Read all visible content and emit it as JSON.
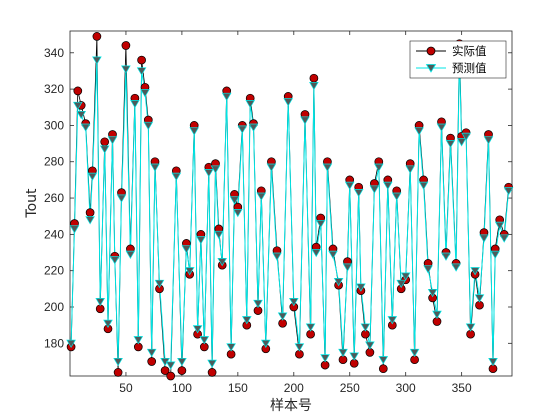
{
  "chart_data": {
    "type": "line",
    "xlabel": "样本号",
    "ylabel": "Tout",
    "xlim": [
      0,
      395
    ],
    "ylim": [
      162,
      352
    ],
    "x_ticks": [
      50,
      100,
      150,
      200,
      250,
      300,
      350
    ],
    "y_ticks": [
      180,
      200,
      220,
      240,
      260,
      280,
      300,
      320,
      340
    ],
    "grid": false,
    "legend_position": "top-right",
    "series": [
      {
        "name": "实际值",
        "color": "#000000",
        "marker_fill": "#c00000",
        "marker": "circle",
        "x": [
          1,
          4,
          7,
          10,
          14,
          18,
          20,
          24,
          27,
          31,
          34,
          38,
          40,
          43,
          46,
          50,
          54,
          58,
          61,
          64,
          67,
          70,
          73,
          76,
          80,
          85,
          90,
          95,
          100,
          104,
          107,
          111,
          114,
          117,
          120,
          124,
          127,
          130,
          133,
          136,
          140,
          144,
          147,
          150,
          154,
          158,
          161,
          164,
          168,
          171,
          175,
          180,
          185,
          190,
          195,
          200,
          205,
          210,
          215,
          218,
          220,
          224,
          228,
          230,
          235,
          240,
          244,
          248,
          250,
          254,
          258,
          260,
          264,
          268,
          272,
          276,
          280,
          284,
          288,
          292,
          296,
          300,
          304,
          308,
          312,
          316,
          320,
          324,
          328,
          332,
          336,
          340,
          345,
          348,
          350,
          354,
          358,
          362,
          366,
          370,
          374,
          378,
          380,
          384,
          388,
          392
        ],
        "values": [
          178,
          246,
          319,
          311,
          301,
          252,
          275,
          349,
          199,
          291,
          188,
          295,
          228,
          164,
          263,
          344,
          232,
          315,
          178,
          336,
          321,
          303,
          170,
          280,
          210,
          165,
          162,
          275,
          165,
          235,
          218,
          300,
          185,
          240,
          178,
          277,
          164,
          279,
          243,
          223,
          319,
          174,
          262,
          255,
          300,
          190,
          315,
          301,
          198,
          264,
          177,
          280,
          231,
          191,
          316,
          200,
          174,
          306,
          185,
          326,
          233,
          249,
          168,
          280,
          232,
          212,
          171,
          225,
          270,
          169,
          266,
          209,
          185,
          175,
          268,
          280,
          166,
          270,
          190,
          264,
          210,
          215,
          279,
          171,
          300,
          270,
          224,
          205,
          192,
          302,
          230,
          293,
          224,
          345,
          294,
          296,
          185,
          218,
          201,
          241,
          295,
          166,
          232,
          248,
          240,
          266
        ]
      },
      {
        "name": "预测值",
        "color": "#00e5e5",
        "marker_fill": "#4d5a5a",
        "marker": "triangle-down",
        "x": [
          1,
          4,
          7,
          10,
          14,
          18,
          20,
          24,
          27,
          31,
          34,
          38,
          40,
          43,
          46,
          50,
          54,
          58,
          61,
          64,
          67,
          70,
          73,
          76,
          80,
          85,
          90,
          95,
          100,
          104,
          107,
          111,
          114,
          117,
          120,
          124,
          127,
          130,
          133,
          136,
          140,
          144,
          147,
          150,
          154,
          158,
          161,
          164,
          168,
          171,
          175,
          180,
          185,
          190,
          195,
          200,
          205,
          210,
          215,
          218,
          220,
          224,
          228,
          230,
          235,
          240,
          244,
          248,
          250,
          254,
          258,
          260,
          264,
          268,
          272,
          276,
          280,
          284,
          288,
          292,
          296,
          300,
          304,
          308,
          312,
          316,
          320,
          324,
          328,
          332,
          336,
          340,
          345,
          348,
          350,
          354,
          358,
          362,
          366,
          370,
          374,
          378,
          380,
          384,
          388,
          392
        ],
        "values": [
          180,
          243,
          311,
          306,
          299,
          248,
          272,
          336,
          203,
          287,
          191,
          292,
          226,
          170,
          260,
          331,
          229,
          312,
          182,
          330,
          318,
          300,
          175,
          277,
          213,
          170,
          168,
          272,
          170,
          232,
          220,
          297,
          188,
          237,
          182,
          274,
          169,
          276,
          240,
          225,
          316,
          178,
          259,
          252,
          298,
          193,
          312,
          299,
          202,
          261,
          180,
          277,
          228,
          195,
          313,
          203,
          178,
          303,
          189,
          322,
          230,
          246,
          172,
          277,
          229,
          214,
          175,
          222,
          267,
          173,
          263,
          211,
          189,
          179,
          265,
          277,
          171,
          267,
          193,
          261,
          213,
          217,
          276,
          175,
          297,
          267,
          221,
          208,
          196,
          299,
          228,
          290,
          222,
          338,
          291,
          294,
          189,
          220,
          205,
          238,
          292,
          170,
          229,
          245,
          238,
          264
        ]
      }
    ]
  }
}
